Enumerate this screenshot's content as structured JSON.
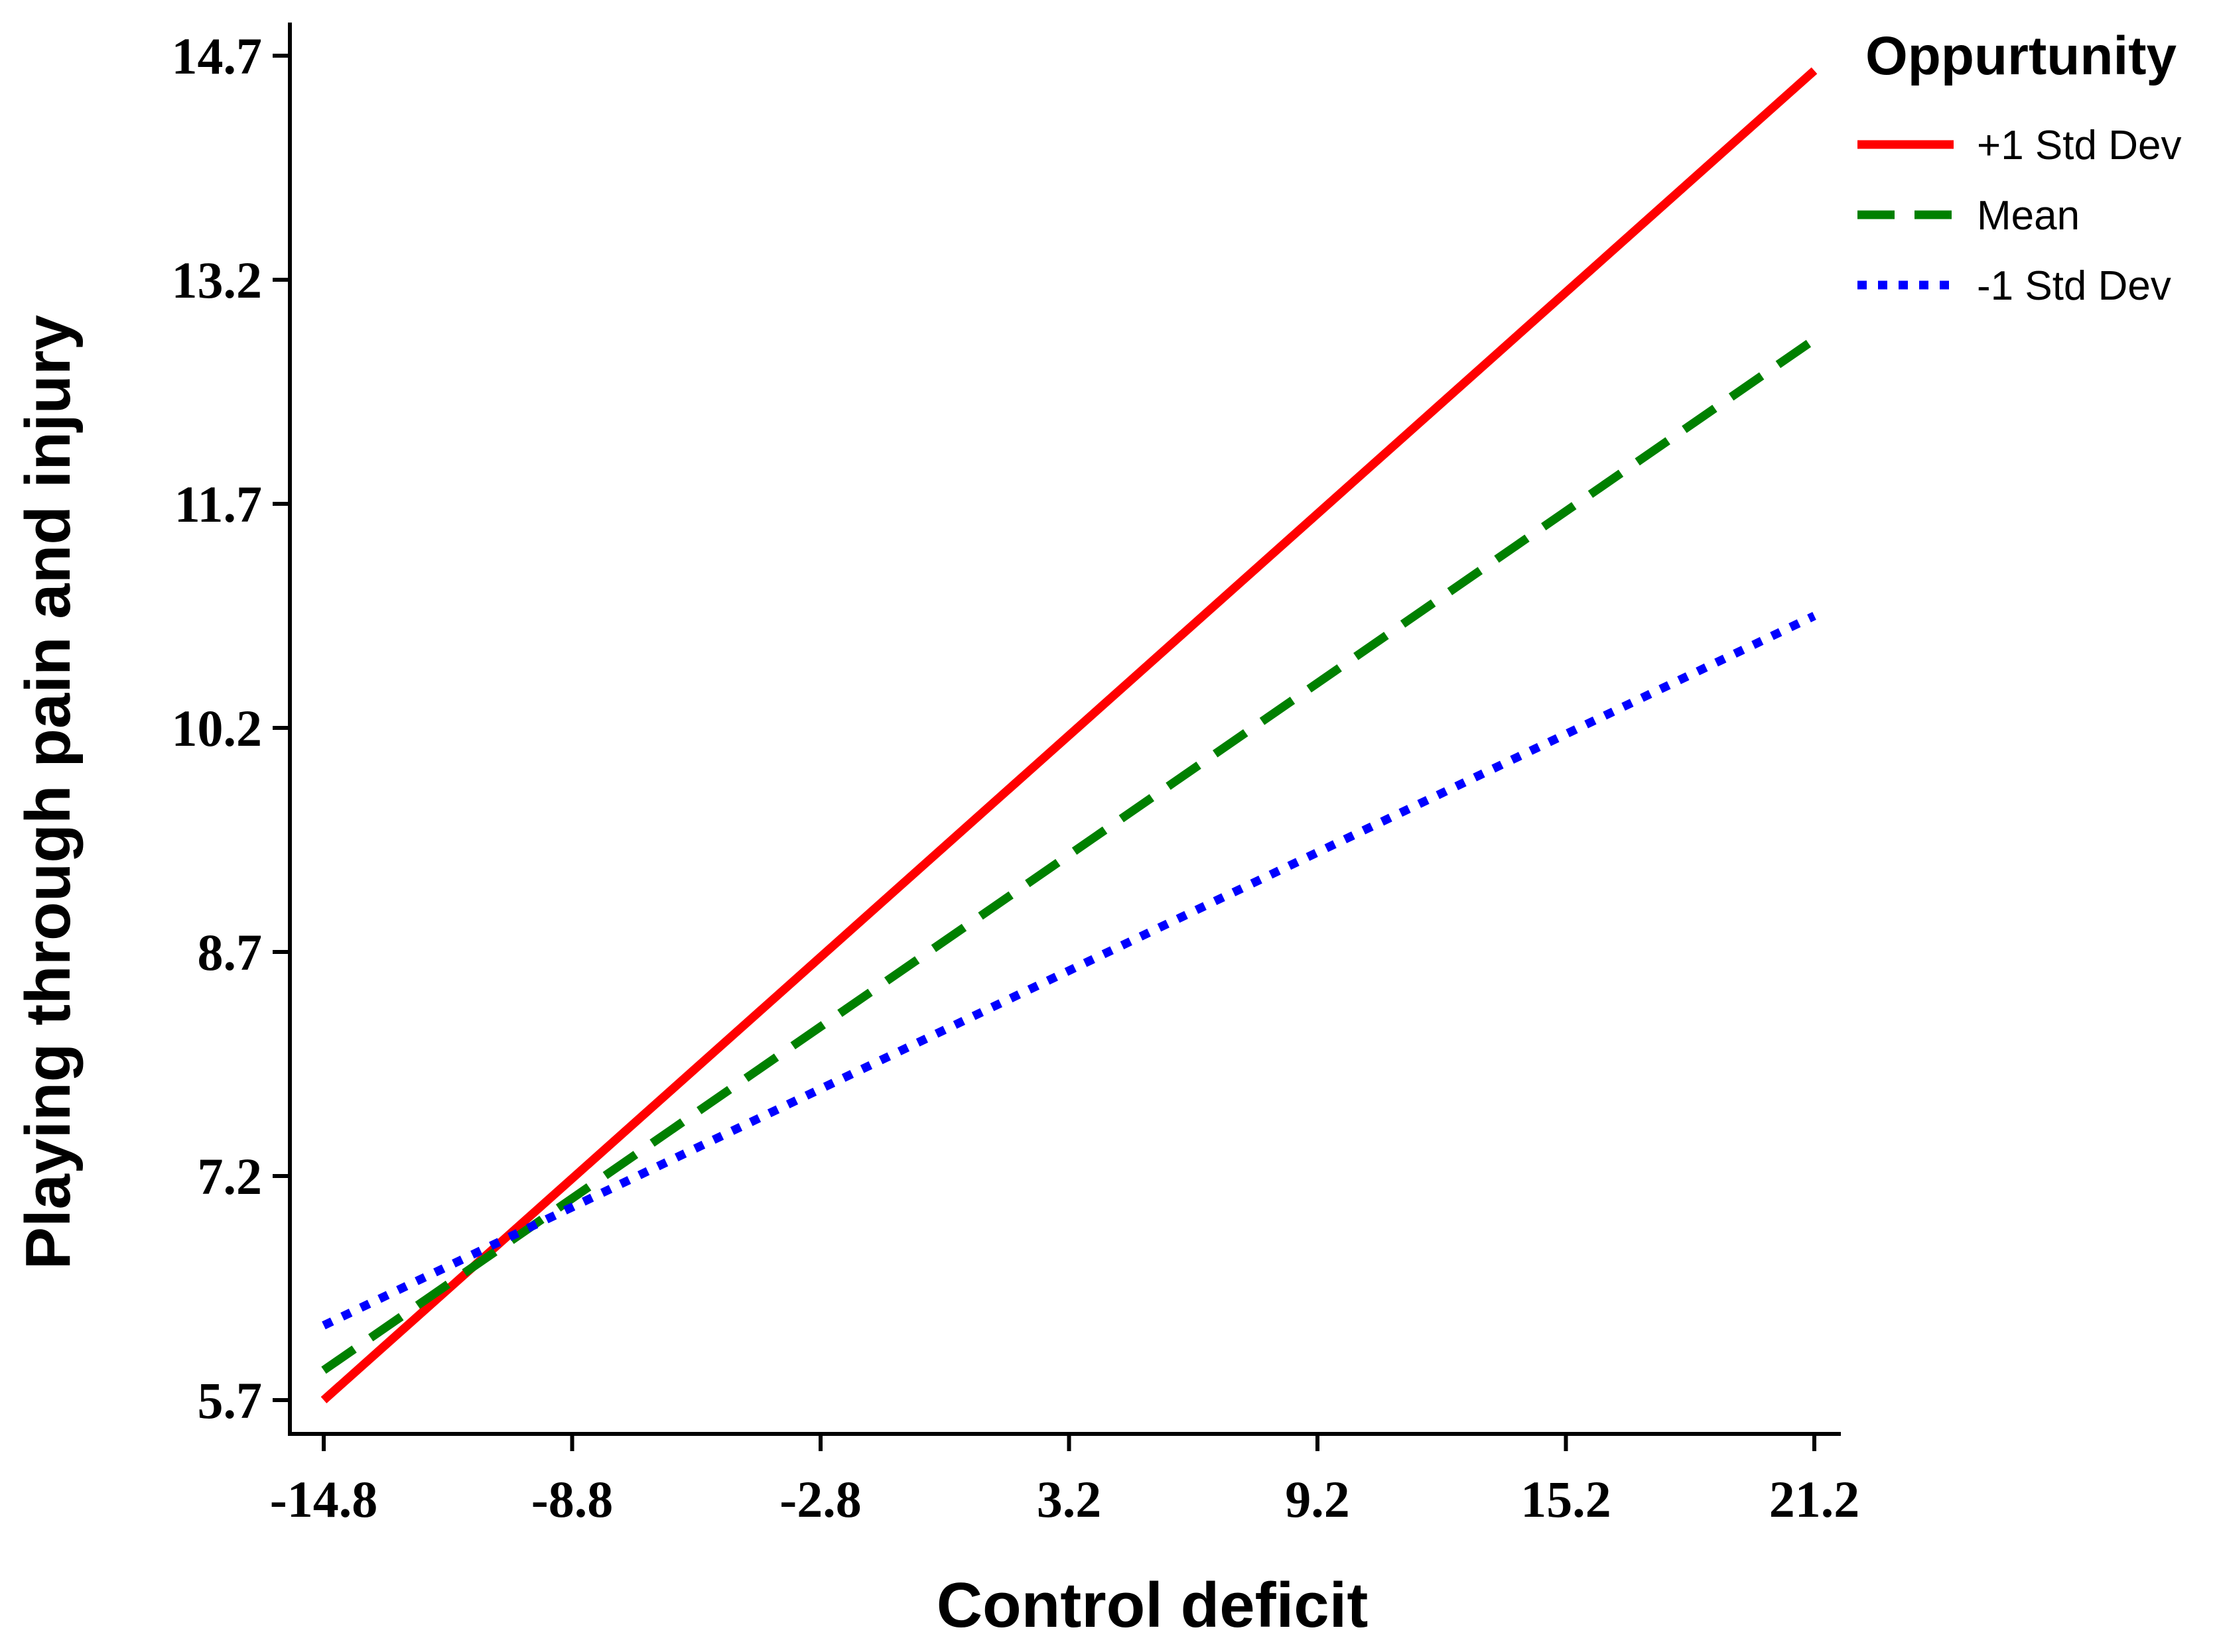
{
  "chart_data": {
    "type": "line",
    "title": "",
    "xlabel": "Control deficit",
    "ylabel": "Playing through pain and injury",
    "xlim": [
      -14.8,
      21.2
    ],
    "ylim": [
      5.7,
      14.7
    ],
    "x_ticks": [
      "-14.8",
      "-8.8",
      "-2.8",
      "3.2",
      "9.2",
      "15.2",
      "21.2"
    ],
    "y_ticks": [
      "5.7",
      "7.2",
      "8.7",
      "10.2",
      "11.7",
      "13.2",
      "14.7"
    ],
    "x_tick_values": [
      -14.8,
      -8.8,
      -2.8,
      3.2,
      9.2,
      15.2,
      21.2
    ],
    "y_tick_values": [
      5.7,
      7.2,
      8.7,
      10.2,
      11.7,
      13.2,
      14.7
    ],
    "legend_title": "Oppurtunity",
    "legend_position": "top-right",
    "grid": false,
    "series": [
      {
        "name": "+1 Std Dev",
        "x": [
          -14.8,
          21.2
        ],
        "y": [
          5.7,
          14.6
        ],
        "color": "#ff0000",
        "style": "solid"
      },
      {
        "name": "Mean",
        "x": [
          -14.8,
          21.2
        ],
        "y": [
          5.9,
          12.8
        ],
        "color": "#008000",
        "style": "dashed"
      },
      {
        "name": "-1 Std Dev",
        "x": [
          -14.8,
          21.2
        ],
        "y": [
          6.2,
          10.95
        ],
        "color": "#0000ff",
        "style": "dotted"
      }
    ]
  }
}
